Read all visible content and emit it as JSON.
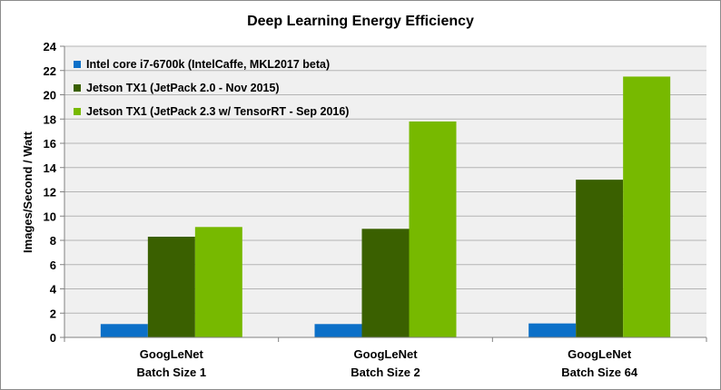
{
  "chart_data": {
    "type": "bar",
    "title": "Deep Learning Energy Efficiency",
    "xlabel": "",
    "ylabel": "Images/Second / Watt",
    "ylim": [
      0,
      24
    ],
    "yticks": [
      0,
      2,
      4,
      6,
      8,
      10,
      12,
      14,
      16,
      18,
      20,
      22,
      24
    ],
    "grid": true,
    "legend_position": "top-left",
    "categories": [
      [
        "GoogLeNet",
        "Batch Size 1"
      ],
      [
        "GoogLeNet",
        "Batch Size 2"
      ],
      [
        "GoogLeNet",
        "Batch Size 64"
      ]
    ],
    "series": [
      {
        "name": "Intel core i7-6700k (IntelCaffe, MKL2017 beta)",
        "color": "#0c70c8",
        "values": [
          1.1,
          1.1,
          1.15
        ]
      },
      {
        "name": "Jetson TX1 (JetPack 2.0 - Nov 2015)",
        "color": "#3a6000",
        "values": [
          8.3,
          8.95,
          13.0
        ]
      },
      {
        "name": "Jetson TX1 (JetPack 2.3 w/ TensorRT - Sep 2016)",
        "color": "#77b900",
        "values": [
          9.1,
          17.8,
          21.5
        ]
      }
    ]
  }
}
